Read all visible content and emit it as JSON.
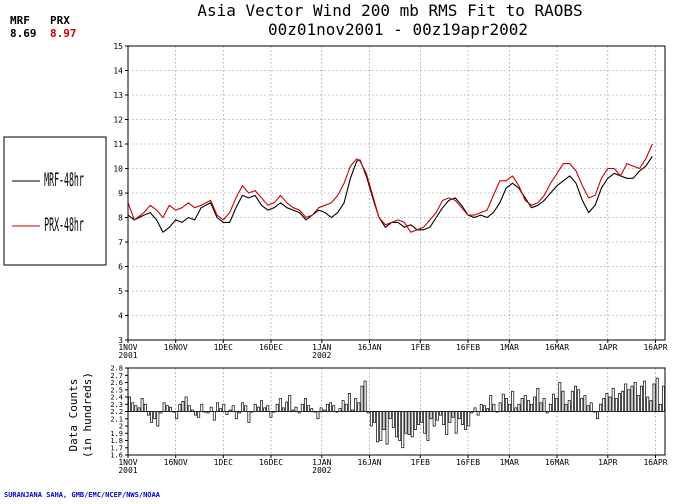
{
  "header": {
    "title_line1": "Asia Vector Wind 200 mb RMS Fit to RAOBS",
    "title_line2": "00z01nov2001 - 00z19apr2002"
  },
  "corner": {
    "mrf_label": "MRF",
    "mrf_value": "8.69",
    "prx_label": "PRX",
    "prx_value": "8.97",
    "mrf_color": "#000000",
    "prx_color": "#cc0000"
  },
  "credit": "SURANJANA SAHA, GMB/EMC/NCEP/NWS/NOAA",
  "chart_data": [
    {
      "type": "line",
      "title": "Asia Vector Wind 200 mb RMS Fit to RAOBS",
      "subtitle": "00z01nov2001 - 00z19apr2002",
      "x_tick_labels": [
        "1NOV",
        "16NOV",
        "1DEC",
        "16DEC",
        "1JAN",
        "16JAN",
        "1FEB",
        "16FEB",
        "1MAR",
        "16MAR",
        "1APR",
        "16APR"
      ],
      "x_tick_years": {
        "1NOV": "2001",
        "1JAN": "2002"
      },
      "x_tick_days": [
        0,
        15,
        30,
        45,
        61,
        76,
        92,
        107,
        120,
        135,
        151,
        166
      ],
      "xlim": [
        0,
        169
      ],
      "ylim": [
        3,
        15
      ],
      "y_ticks": [
        3,
        4,
        5,
        6,
        7,
        8,
        9,
        10,
        11,
        12,
        13,
        14,
        15
      ],
      "grid": true,
      "legend": "left-outside",
      "series": [
        {
          "name": "MRF-48hr",
          "color": "#000000",
          "anchors": [
            [
              0,
              8.1
            ],
            [
              2,
              7.9
            ],
            [
              5,
              8.1
            ],
            [
              7,
              8.2
            ],
            [
              9,
              7.9
            ],
            [
              11,
              7.4
            ],
            [
              13,
              7.6
            ],
            [
              15,
              7.9
            ],
            [
              17,
              7.8
            ],
            [
              19,
              8.0
            ],
            [
              21,
              7.9
            ],
            [
              23,
              8.4
            ],
            [
              26,
              8.6
            ],
            [
              28,
              8.0
            ],
            [
              30,
              7.8
            ],
            [
              32,
              7.8
            ],
            [
              34,
              8.4
            ],
            [
              36,
              8.9
            ],
            [
              38,
              8.8
            ],
            [
              40,
              8.9
            ],
            [
              42,
              8.5
            ],
            [
              44,
              8.3
            ],
            [
              46,
              8.4
            ],
            [
              48,
              8.6
            ],
            [
              50,
              8.4
            ],
            [
              52,
              8.3
            ],
            [
              54,
              8.2
            ],
            [
              56,
              7.9
            ],
            [
              58,
              8.1
            ],
            [
              60,
              8.3
            ],
            [
              62,
              8.2
            ],
            [
              64,
              8.0
            ],
            [
              66,
              8.2
            ],
            [
              68,
              8.6
            ],
            [
              70,
              9.6
            ],
            [
              72,
              10.3
            ],
            [
              73,
              10.35
            ],
            [
              75,
              9.7
            ],
            [
              77,
              8.8
            ],
            [
              79,
              8.0
            ],
            [
              81,
              7.6
            ],
            [
              83,
              7.8
            ],
            [
              85,
              7.8
            ],
            [
              87,
              7.6
            ],
            [
              89,
              7.7
            ],
            [
              91,
              7.5
            ],
            [
              93,
              7.5
            ],
            [
              95,
              7.6
            ],
            [
              97,
              8.0
            ],
            [
              99,
              8.4
            ],
            [
              101,
              8.7
            ],
            [
              103,
              8.8
            ],
            [
              105,
              8.5
            ],
            [
              107,
              8.1
            ],
            [
              109,
              8.0
            ],
            [
              111,
              8.1
            ],
            [
              113,
              8.0
            ],
            [
              115,
              8.2
            ],
            [
              117,
              8.6
            ],
            [
              119,
              9.2
            ],
            [
              121,
              9.4
            ],
            [
              123,
              9.2
            ],
            [
              125,
              8.8
            ],
            [
              127,
              8.4
            ],
            [
              129,
              8.5
            ],
            [
              131,
              8.7
            ],
            [
              133,
              9.0
            ],
            [
              135,
              9.3
            ],
            [
              137,
              9.5
            ],
            [
              139,
              9.7
            ],
            [
              141,
              9.4
            ],
            [
              143,
              8.7
            ],
            [
              145,
              8.2
            ],
            [
              147,
              8.5
            ],
            [
              149,
              9.2
            ],
            [
              151,
              9.6
            ],
            [
              153,
              9.8
            ],
            [
              155,
              9.7
            ],
            [
              157,
              9.6
            ],
            [
              159,
              9.6
            ],
            [
              161,
              9.9
            ],
            [
              163,
              10.1
            ],
            [
              165,
              10.5
            ]
          ]
        },
        {
          "name": "PRX-48hr",
          "color": "#cc0000",
          "anchors": [
            [
              0,
              8.6
            ],
            [
              2,
              7.9
            ],
            [
              5,
              8.2
            ],
            [
              7,
              8.5
            ],
            [
              9,
              8.3
            ],
            [
              11,
              8.0
            ],
            [
              13,
              8.5
            ],
            [
              15,
              8.3
            ],
            [
              17,
              8.4
            ],
            [
              19,
              8.6
            ],
            [
              21,
              8.4
            ],
            [
              23,
              8.5
            ],
            [
              26,
              8.7
            ],
            [
              28,
              8.1
            ],
            [
              30,
              7.9
            ],
            [
              32,
              8.2
            ],
            [
              34,
              8.8
            ],
            [
              36,
              9.3
            ],
            [
              38,
              9.0
            ],
            [
              40,
              9.1
            ],
            [
              42,
              8.8
            ],
            [
              44,
              8.5
            ],
            [
              46,
              8.6
            ],
            [
              48,
              8.9
            ],
            [
              50,
              8.6
            ],
            [
              52,
              8.4
            ],
            [
              54,
              8.3
            ],
            [
              56,
              8.0
            ],
            [
              58,
              8.1
            ],
            [
              60,
              8.4
            ],
            [
              62,
              8.5
            ],
            [
              64,
              8.6
            ],
            [
              66,
              8.9
            ],
            [
              68,
              9.4
            ],
            [
              70,
              10.1
            ],
            [
              72,
              10.4
            ],
            [
              73,
              10.3
            ],
            [
              75,
              9.8
            ],
            [
              77,
              8.9
            ],
            [
              79,
              8.0
            ],
            [
              81,
              7.7
            ],
            [
              83,
              7.8
            ],
            [
              85,
              7.9
            ],
            [
              87,
              7.8
            ],
            [
              89,
              7.4
            ],
            [
              91,
              7.5
            ],
            [
              93,
              7.6
            ],
            [
              95,
              7.9
            ],
            [
              97,
              8.2
            ],
            [
              99,
              8.7
            ],
            [
              101,
              8.8
            ],
            [
              103,
              8.7
            ],
            [
              105,
              8.4
            ],
            [
              107,
              8.1
            ],
            [
              109,
              8.1
            ],
            [
              111,
              8.2
            ],
            [
              113,
              8.3
            ],
            [
              115,
              8.9
            ],
            [
              117,
              9.5
            ],
            [
              119,
              9.5
            ],
            [
              121,
              9.7
            ],
            [
              123,
              9.3
            ],
            [
              125,
              8.7
            ],
            [
              127,
              8.5
            ],
            [
              129,
              8.6
            ],
            [
              131,
              8.9
            ],
            [
              133,
              9.4
            ],
            [
              135,
              9.8
            ],
            [
              137,
              10.2
            ],
            [
              139,
              10.2
            ],
            [
              141,
              9.9
            ],
            [
              143,
              9.3
            ],
            [
              145,
              8.8
            ],
            [
              147,
              8.9
            ],
            [
              149,
              9.6
            ],
            [
              151,
              10.0
            ],
            [
              153,
              10.0
            ],
            [
              155,
              9.7
            ],
            [
              157,
              10.2
            ],
            [
              159,
              10.1
            ],
            [
              161,
              10.0
            ],
            [
              163,
              10.4
            ],
            [
              165,
              11.0
            ]
          ]
        }
      ]
    },
    {
      "type": "bar",
      "ylabel": "Data Counts (in hundreds)",
      "x_tick_labels": [
        "1NOV",
        "16NOV",
        "1DEC",
        "16DEC",
        "1JAN",
        "16JAN",
        "1FEB",
        "16FEB",
        "1MAR",
        "16MAR",
        "1APR",
        "16APR"
      ],
      "x_tick_years": {
        "1NOV": "2001",
        "1JAN": "2002"
      },
      "x_tick_days": [
        0,
        15,
        30,
        45,
        61,
        76,
        92,
        107,
        120,
        135,
        151,
        166
      ],
      "xlim": [
        0,
        169
      ],
      "ylim": [
        1.6,
        2.8
      ],
      "baseline": 2.2,
      "y_tick_labels": [
        "1.6",
        "1.7",
        "1.8",
        "1.9",
        "2",
        "2.1",
        "2.2",
        "2.3",
        "2.4",
        "2.5",
        "2.6",
        "2.7",
        "2.8"
      ],
      "values": [
        2.4,
        2.32,
        2.28,
        2.25,
        2.38,
        2.3,
        2.15,
        2.05,
        2.1,
        2.0,
        2.18,
        2.32,
        2.28,
        2.26,
        2.2,
        2.1,
        2.3,
        2.34,
        2.4,
        2.28,
        2.22,
        2.15,
        2.12,
        2.3,
        2.2,
        2.18,
        2.26,
        2.08,
        2.32,
        2.24,
        2.3,
        2.16,
        2.22,
        2.28,
        2.1,
        2.18,
        2.32,
        2.28,
        2.05,
        2.2,
        2.3,
        2.26,
        2.35,
        2.25,
        2.28,
        2.12,
        2.2,
        2.3,
        2.38,
        2.25,
        2.33,
        2.42,
        2.22,
        2.26,
        2.18,
        2.3,
        2.38,
        2.28,
        2.24,
        2.2,
        2.1,
        2.25,
        2.22,
        2.3,
        2.32,
        2.28,
        2.2,
        2.24,
        2.35,
        2.3,
        2.45,
        2.22,
        2.38,
        2.32,
        2.55,
        2.62,
        2.18,
        2.0,
        2.05,
        1.78,
        1.8,
        1.95,
        1.75,
        2.1,
        1.98,
        1.85,
        1.8,
        1.7,
        1.9,
        1.88,
        1.85,
        1.95,
        2.02,
        2.05,
        1.9,
        1.8,
        2.1,
        2.0,
        2.08,
        2.15,
        2.02,
        1.88,
        2.05,
        2.12,
        1.9,
        2.1,
        2.02,
        1.95,
        2.0,
        2.18,
        2.25,
        2.15,
        2.3,
        2.28,
        2.24,
        2.42,
        2.3,
        2.2,
        2.32,
        2.44,
        2.38,
        2.3,
        2.48,
        2.25,
        2.3,
        2.38,
        2.42,
        2.35,
        2.3,
        2.4,
        2.52,
        2.32,
        2.38,
        2.18,
        2.3,
        2.44,
        2.38,
        2.6,
        2.48,
        2.3,
        2.35,
        2.48,
        2.55,
        2.5,
        2.38,
        2.42,
        2.28,
        2.32,
        2.2,
        2.1,
        2.3,
        2.38,
        2.45,
        2.4,
        2.52,
        2.38,
        2.45,
        2.48,
        2.58,
        2.5,
        2.55,
        2.6,
        2.42,
        2.55,
        2.62,
        2.4,
        2.35,
        2.58,
        2.66,
        2.3,
        2.55
      ]
    }
  ]
}
